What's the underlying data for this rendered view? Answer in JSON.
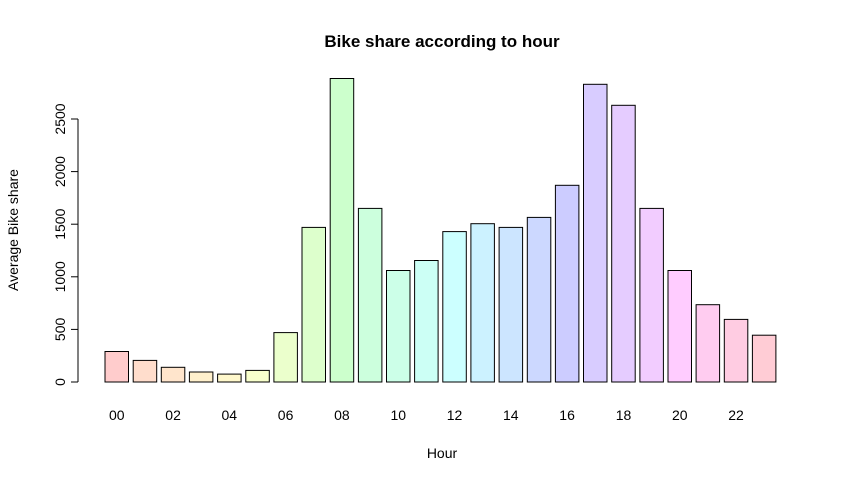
{
  "chart_data": {
    "type": "bar",
    "title": "Bike share according to hour",
    "xlabel": "Hour",
    "ylabel": "Average Bike share",
    "ylim": [
      0,
      2900
    ],
    "yticks": [
      0,
      500,
      1000,
      1500,
      2000,
      2500
    ],
    "grid": false,
    "categories": [
      "00",
      "01",
      "02",
      "03",
      "04",
      "05",
      "06",
      "07",
      "08",
      "09",
      "10",
      "11",
      "12",
      "13",
      "14",
      "15",
      "16",
      "17",
      "18",
      "19",
      "20",
      "21",
      "22",
      "23"
    ],
    "values": [
      290,
      205,
      140,
      95,
      75,
      110,
      470,
      1470,
      2885,
      1650,
      1060,
      1155,
      1430,
      1505,
      1470,
      1565,
      1870,
      2830,
      2630,
      1650,
      1060,
      735,
      595,
      445
    ],
    "colors": [
      "#FFCCCC",
      "#FFDDCC",
      "#FFE5CC",
      "#FFF0CC",
      "#FFF8CC",
      "#F8FFCC",
      "#EBFFCC",
      "#DDFFCC",
      "#CCFFCC",
      "#CCFFDD",
      "#CCFFE8",
      "#CCFFF5",
      "#CCFFFF",
      "#CCF2FF",
      "#CCE5FF",
      "#CCD8FF",
      "#CCCCFF",
      "#D8CCFF",
      "#E5CCFF",
      "#F2CCFF",
      "#FFCCFF",
      "#FFCCF0",
      "#FFCCE2",
      "#FFCCD5"
    ],
    "visible_xtick_labels": [
      "00",
      "02",
      "04",
      "06",
      "08",
      "10",
      "12",
      "14",
      "16",
      "18",
      "20",
      "22"
    ]
  }
}
